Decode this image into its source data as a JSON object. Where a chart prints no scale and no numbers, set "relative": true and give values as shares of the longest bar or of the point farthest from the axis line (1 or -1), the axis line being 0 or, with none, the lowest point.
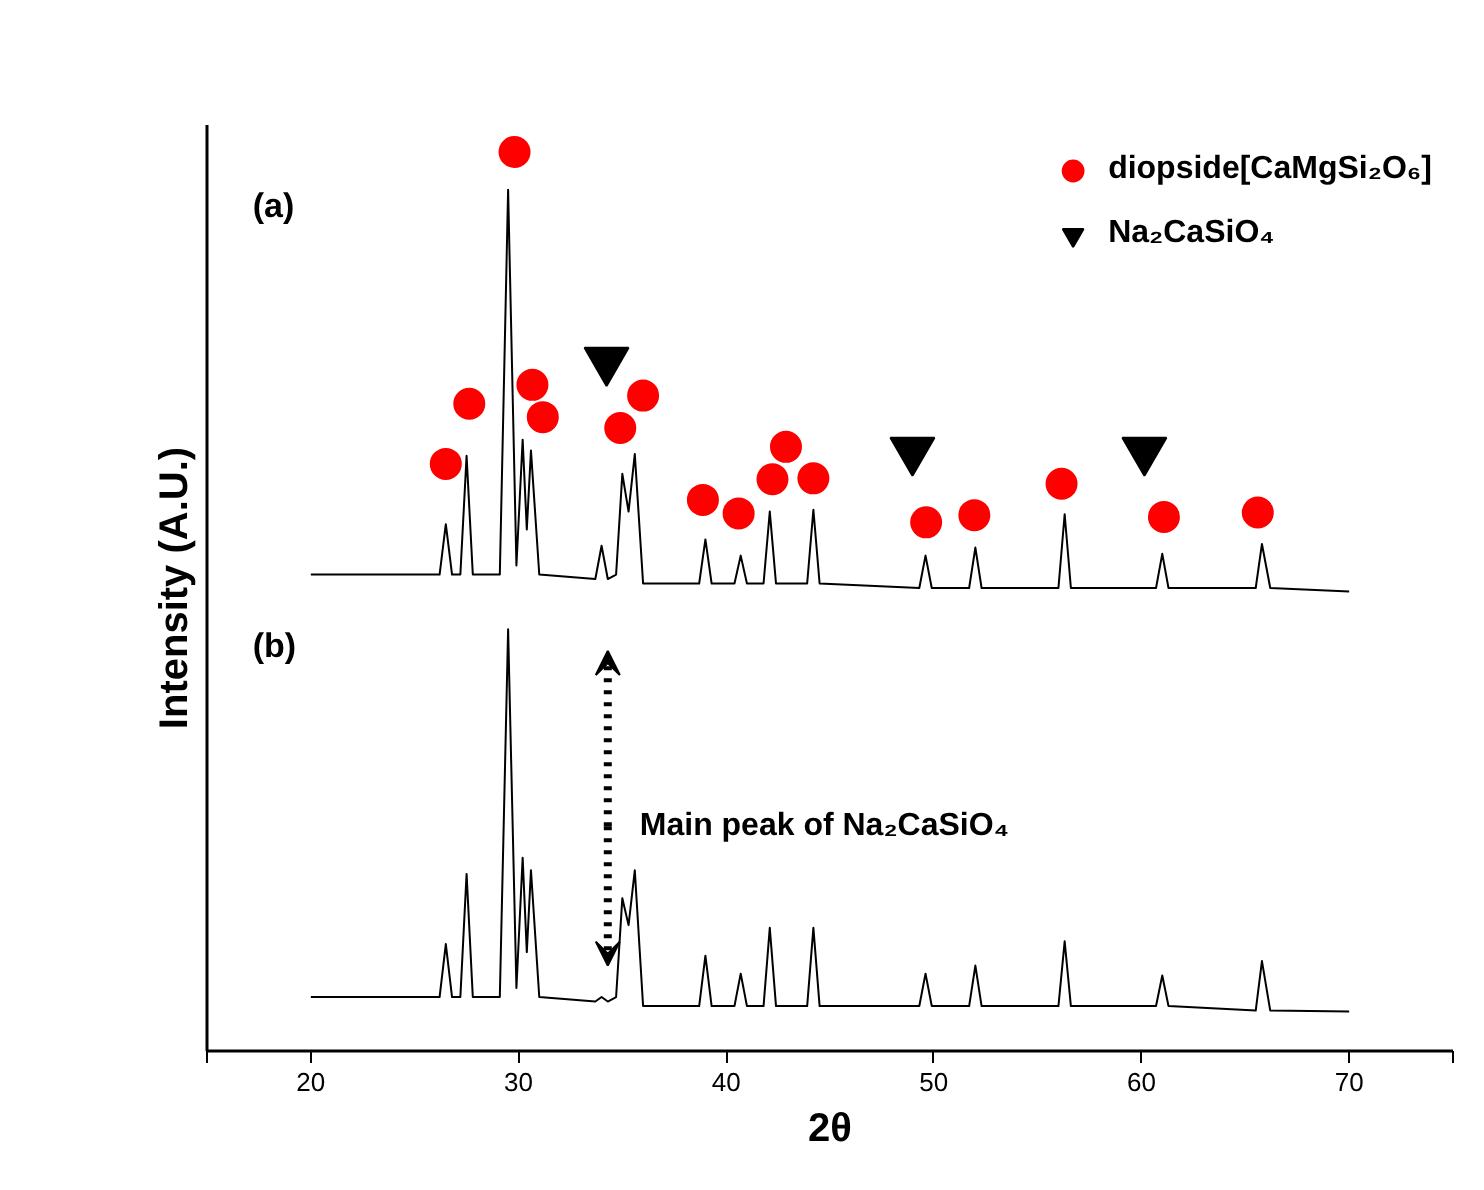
{
  "chart_data": {
    "type": "line",
    "relative": true,
    "xlabel": "2θ",
    "ylabel": "Intensity (A.U.)",
    "xlim": [
      15,
      75
    ],
    "xticks": [
      {
        "value": 15,
        "label": null
      },
      20,
      30,
      40,
      50,
      60,
      70,
      {
        "value": 75,
        "label": null
      }
    ],
    "x": [
      20,
      26.2,
      26.5,
      26.8,
      27.2,
      27.5,
      27.8,
      29.1,
      29.5,
      29.9,
      30.2,
      30.4,
      30.6,
      31.0,
      33.7,
      34,
      34.3,
      34.7,
      35,
      35.3,
      35.6,
      36.0,
      38.7,
      39,
      39.3,
      40.4,
      40.7,
      41.0,
      41.8,
      42.1,
      42.4,
      43.9,
      44.2,
      44.5,
      49.3,
      49.6,
      49.9,
      51.7,
      52,
      52.3,
      56.0,
      56.3,
      56.6,
      60.7,
      61,
      61.3,
      65.5,
      65.8,
      66.2,
      70
    ],
    "series": [
      {
        "color": "#000000",
        "values": [
          0.53,
          0.53,
          0.586,
          0.53,
          0.53,
          0.662,
          0.53,
          0.53,
          0.958,
          0.54,
          0.68,
          0.58,
          0.668,
          0.53,
          0.525,
          0.562,
          0.525,
          0.53,
          0.642,
          0.6,
          0.664,
          0.52,
          0.52,
          0.569,
          0.52,
          0.52,
          0.551,
          0.52,
          0.52,
          0.6,
          0.52,
          0.52,
          0.602,
          0.52,
          0.515,
          0.551,
          0.515,
          0.515,
          0.56,
          0.515,
          0.515,
          0.597,
          0.515,
          0.515,
          0.553,
          0.515,
          0.515,
          0.564,
          0.515,
          0.511
        ]
      },
      {
        "color": "#000000",
        "values": [
          0.06,
          0.06,
          0.119,
          0.06,
          0.06,
          0.197,
          0.06,
          0.06,
          0.469,
          0.07,
          0.215,
          0.11,
          0.201,
          0.06,
          0.055,
          0.06,
          0.055,
          0.06,
          0.17,
          0.14,
          0.201,
          0.05,
          0.05,
          0.106,
          0.05,
          0.05,
          0.086,
          0.05,
          0.05,
          0.137,
          0.05,
          0.05,
          0.137,
          0.05,
          0.05,
          0.086,
          0.05,
          0.05,
          0.095,
          0.05,
          0.05,
          0.122,
          0.05,
          0.05,
          0.084,
          0.05,
          0.045,
          0.1,
          0.045,
          0.044
        ]
      },
      {
        "type": "scatter",
        "marker": "circle",
        "name": "diopside[CaMgSi₂O₆]",
        "color": "#ff0000",
        "x": [
          26.5,
          27.63,
          29.81,
          30.67,
          31.17,
          34.9,
          36.0,
          38.88,
          40.6,
          42.23,
          42.88,
          44.2,
          49.63,
          51.95,
          56.15,
          61.08,
          65.6
        ],
        "values": [
          0.653,
          0.72,
          1.0,
          0.741,
          0.705,
          0.693,
          0.729,
          0.613,
          0.598,
          0.636,
          0.672,
          0.637,
          0.588,
          0.596,
          0.631,
          0.594,
          0.599
        ]
      },
      {
        "type": "scatter",
        "marker": "triangle",
        "name": "Na₂CaSiO₄",
        "color": "#000000",
        "x": [
          34.24,
          48.97,
          60.14
        ],
        "values": [
          0.768,
          0.668,
          0.668
        ]
      }
    ],
    "annotations": [
      "(a)",
      "(b)",
      "Main peak of Na₂CaSiO₄"
    ],
    "legend": "top right",
    "grid": false
  }
}
